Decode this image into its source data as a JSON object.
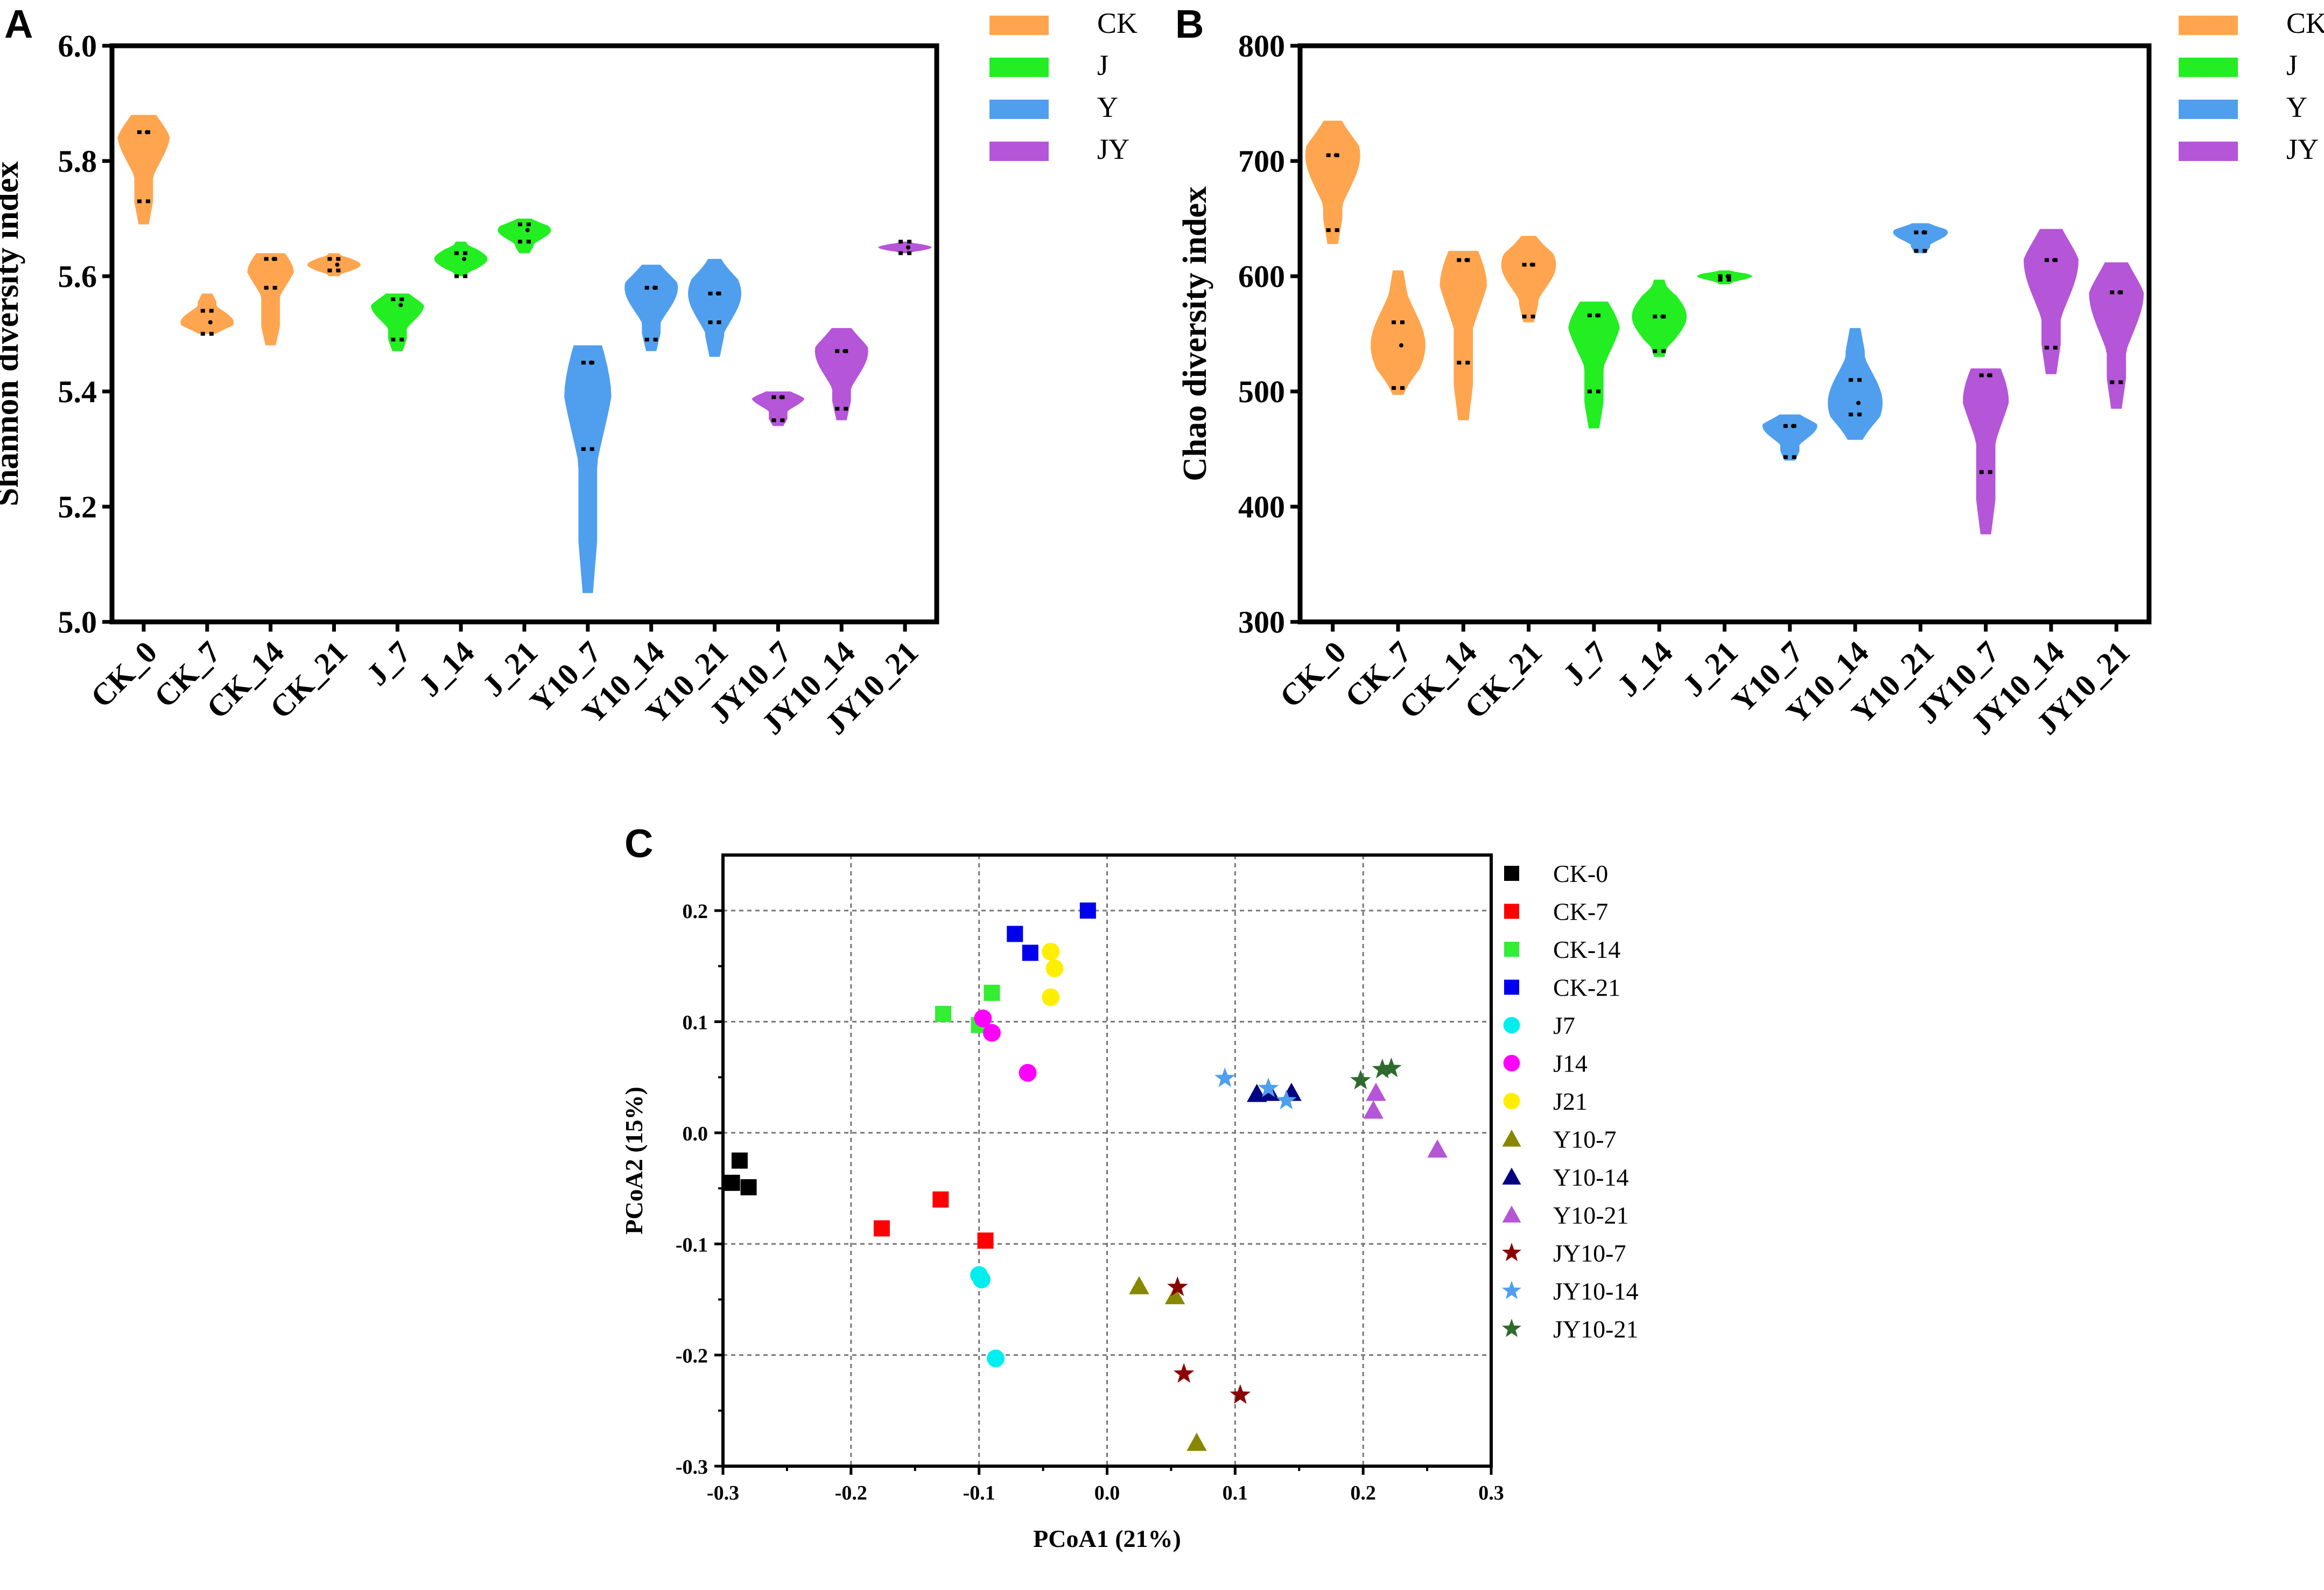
{
  "panels": {
    "a": "A",
    "b": "B",
    "c": "C"
  },
  "chart_data": [
    {
      "type": "violin",
      "title": "",
      "ylabel": "Shannon diversity index",
      "xlabel": "",
      "ylim": [
        5.0,
        6.0
      ],
      "yticks": [
        "5.0",
        "5.2",
        "5.4",
        "5.6",
        "5.8",
        "6.0"
      ],
      "categories": [
        "CK_0",
        "CK_7",
        "CK_14",
        "CK_21",
        "J_7",
        "J_14",
        "J_21",
        "Y10_7",
        "Y10_14",
        "Y10_21",
        "JY10_7",
        "JY10_14",
        "JY10_21"
      ],
      "groups": [
        "CK",
        "CK",
        "CK",
        "CK",
        "J",
        "J",
        "J",
        "Y",
        "Y",
        "Y",
        "JY",
        "JY",
        "JY"
      ],
      "legend": [
        {
          "label": "CK",
          "color": "#FFA54F"
        },
        {
          "label": "J",
          "color": "#22EE22"
        },
        {
          "label": "Y",
          "color": "#4F9FEE"
        },
        {
          "label": "JY",
          "color": "#B555D8"
        }
      ],
      "min": [
        5.69,
        5.5,
        5.48,
        5.6,
        5.47,
        5.6,
        5.64,
        5.05,
        5.47,
        5.46,
        5.34,
        5.35,
        5.64
      ],
      "max": [
        5.88,
        5.57,
        5.64,
        5.64,
        5.57,
        5.66,
        5.7,
        5.48,
        5.62,
        5.63,
        5.4,
        5.51,
        5.66
      ],
      "median": [
        5.85,
        5.52,
        5.63,
        5.62,
        5.55,
        5.63,
        5.68,
        5.45,
        5.58,
        5.57,
        5.39,
        5.47,
        5.65
      ],
      "q1": [
        5.73,
        5.5,
        5.58,
        5.61,
        5.49,
        5.6,
        5.66,
        5.3,
        5.49,
        5.52,
        5.35,
        5.37,
        5.64
      ],
      "q3": [
        5.85,
        5.54,
        5.63,
        5.63,
        5.56,
        5.64,
        5.69,
        5.45,
        5.58,
        5.57,
        5.39,
        5.47,
        5.66
      ]
    },
    {
      "type": "violin",
      "title": "",
      "ylabel": "Chao diversity index",
      "xlabel": "",
      "ylim": [
        300,
        800
      ],
      "yticks": [
        "300",
        "400",
        "500",
        "600",
        "700",
        "800"
      ],
      "categories": [
        "CK_0",
        "CK_7",
        "CK_14",
        "CK_21",
        "J_7",
        "J_14",
        "J_21",
        "Y10_7",
        "Y10_14",
        "Y10_21",
        "JY10_7",
        "JY10_14",
        "JY10_21"
      ],
      "groups": [
        "CK",
        "CK",
        "CK",
        "CK",
        "J",
        "J",
        "J",
        "Y",
        "Y",
        "Y",
        "JY",
        "JY",
        "JY"
      ],
      "legend": [
        {
          "label": "CK",
          "color": "#FFA54F"
        },
        {
          "label": "J",
          "color": "#22EE22"
        },
        {
          "label": "Y",
          "color": "#4F9FEE"
        },
        {
          "label": "JY",
          "color": "#B555D8"
        }
      ],
      "min": [
        628,
        497,
        475,
        560,
        468,
        530,
        593,
        440,
        458,
        620,
        376,
        515,
        485
      ],
      "max": [
        735,
        605,
        622,
        635,
        578,
        597,
        605,
        480,
        555,
        646,
        520,
        641,
        612
      ],
      "median": [
        705,
        540,
        614,
        610,
        566,
        565,
        600,
        470,
        490,
        638,
        514,
        614,
        586
      ],
      "q1": [
        640,
        503,
        525,
        565,
        500,
        535,
        597,
        443,
        480,
        622,
        430,
        538,
        508
      ],
      "q3": [
        705,
        560,
        614,
        610,
        566,
        565,
        600,
        470,
        510,
        638,
        514,
        614,
        586
      ]
    },
    {
      "type": "scatter",
      "title": "",
      "xlabel": "PCoA1 (21%)",
      "ylabel": "PCoA2 (15%)",
      "xlim": [
        -0.3,
        0.3
      ],
      "ylim": [
        -0.3,
        0.25
      ],
      "xticks": [
        "-0.3",
        "-0.2",
        "-0.1",
        "0.0",
        "0.1",
        "0.2",
        "0.3"
      ],
      "yticks": [
        "-0.3",
        "-0.2",
        "-0.1",
        "0.0",
        "0.1",
        "0.2"
      ],
      "grid": true,
      "legend_position": "right",
      "series": [
        {
          "name": "CK-0",
          "color": "#000000",
          "marker": "square",
          "points": [
            [
              -0.287,
              -0.025
            ],
            [
              -0.293,
              -0.045
            ],
            [
              -0.28,
              -0.049
            ]
          ]
        },
        {
          "name": "CK-7",
          "color": "#FF0000",
          "marker": "square",
          "points": [
            [
              -0.176,
              -0.086
            ],
            [
              -0.13,
              -0.06
            ],
            [
              -0.095,
              -0.097
            ]
          ]
        },
        {
          "name": "CK-14",
          "color": "#33EE33",
          "marker": "square",
          "points": [
            [
              -0.128,
              0.107
            ],
            [
              -0.09,
              0.126
            ],
            [
              -0.1,
              0.097
            ]
          ]
        },
        {
          "name": "CK-21",
          "color": "#0000EE",
          "marker": "square",
          "points": [
            [
              -0.072,
              0.179
            ],
            [
              -0.06,
              0.162
            ],
            [
              -0.015,
              0.2
            ]
          ]
        },
        {
          "name": "J7",
          "color": "#00EEEE",
          "marker": "circle",
          "points": [
            [
              -0.1,
              -0.128
            ],
            [
              -0.098,
              -0.132
            ],
            [
              -0.087,
              -0.203
            ]
          ]
        },
        {
          "name": "J14",
          "color": "#FF00FF",
          "marker": "circle",
          "points": [
            [
              -0.097,
              0.103
            ],
            [
              -0.09,
              0.09
            ],
            [
              -0.062,
              0.054
            ]
          ]
        },
        {
          "name": "J21",
          "color": "#FFEE00",
          "marker": "circle",
          "points": [
            [
              -0.044,
              0.163
            ],
            [
              -0.041,
              0.148
            ],
            [
              -0.044,
              0.122
            ]
          ]
        },
        {
          "name": "Y10-7",
          "color": "#888800",
          "marker": "triangle",
          "points": [
            [
              0.025,
              -0.138
            ],
            [
              0.053,
              -0.147
            ],
            [
              0.07,
              -0.279
            ]
          ]
        },
        {
          "name": "Y10-14",
          "color": "#000080",
          "marker": "triangle",
          "points": [
            [
              0.117,
              0.035
            ],
            [
              0.127,
              0.036
            ],
            [
              0.144,
              0.036
            ]
          ]
        },
        {
          "name": "Y10-21",
          "color": "#B555D8",
          "marker": "triangle",
          "points": [
            [
              0.21,
              0.036
            ],
            [
              0.208,
              0.02
            ],
            [
              0.258,
              -0.015
            ]
          ]
        },
        {
          "name": "JY10-7",
          "color": "#8B0000",
          "marker": "star",
          "points": [
            [
              0.055,
              -0.139
            ],
            [
              0.06,
              -0.217
            ],
            [
              0.104,
              -0.236
            ]
          ]
        },
        {
          "name": "JY10-14",
          "color": "#4F9FEE",
          "marker": "star",
          "points": [
            [
              0.092,
              0.049
            ],
            [
              0.126,
              0.04
            ],
            [
              0.14,
              0.029
            ]
          ]
        },
        {
          "name": "JY10-21",
          "color": "#2E6B2E",
          "marker": "star",
          "points": [
            [
              0.198,
              0.047
            ],
            [
              0.215,
              0.057
            ],
            [
              0.222,
              0.058
            ]
          ]
        }
      ]
    }
  ]
}
